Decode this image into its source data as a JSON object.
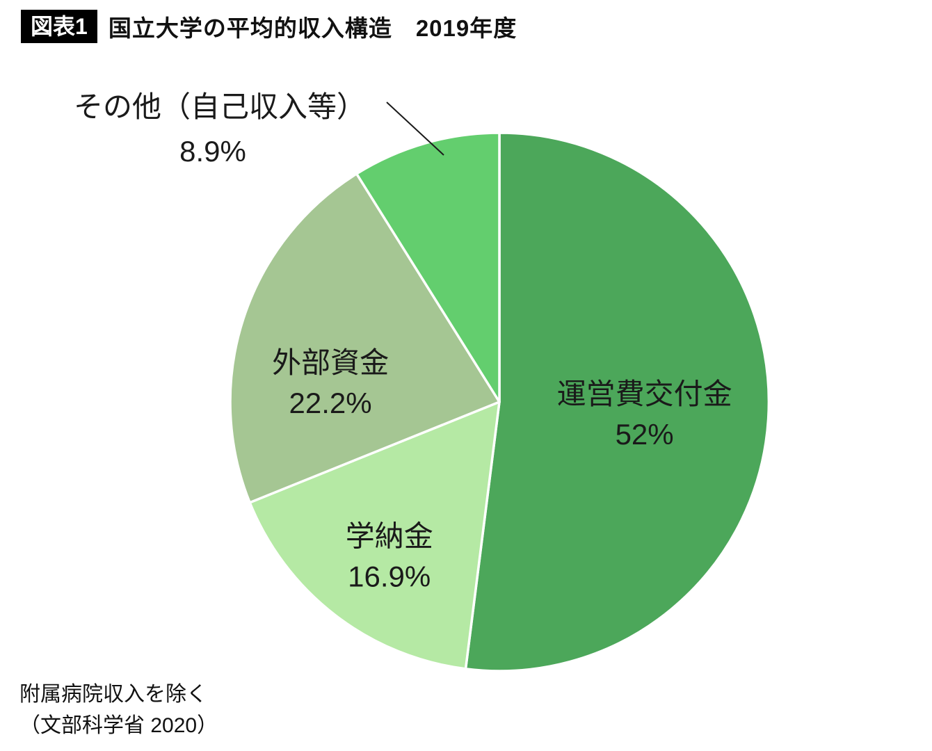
{
  "header": {
    "badge": "図表1",
    "title": "国立大学の平均的収入構造　2019年度"
  },
  "footer": {
    "note_line1": "附属病院収入を除く",
    "note_line2": "（文部科学省 2020）"
  },
  "chart_data": {
    "type": "pie",
    "title": "国立大学の平均的収入構造 2019年度",
    "start_angle_deg": 0,
    "direction": "clockwise",
    "slice_border_color": "#ffffff",
    "text_color": "#1a1a1a",
    "source_note": "附属病院収入を除く（文部科学省 2020）",
    "slices": [
      {
        "label": "運営費交付金",
        "value": 52,
        "display": "52%",
        "color": "#4CA75A",
        "label_position": "inside"
      },
      {
        "label": "学納金",
        "value": 16.9,
        "display": "16.9%",
        "color": "#B5E9A4",
        "label_position": "inside"
      },
      {
        "label": "外部資金",
        "value": 22.2,
        "display": "22.2%",
        "color": "#A5C693",
        "label_position": "inside"
      },
      {
        "label": "その他（自己収入等）",
        "value": 8.9,
        "display": "8.9%",
        "color": "#63CE6E",
        "label_position": "outside"
      }
    ]
  }
}
